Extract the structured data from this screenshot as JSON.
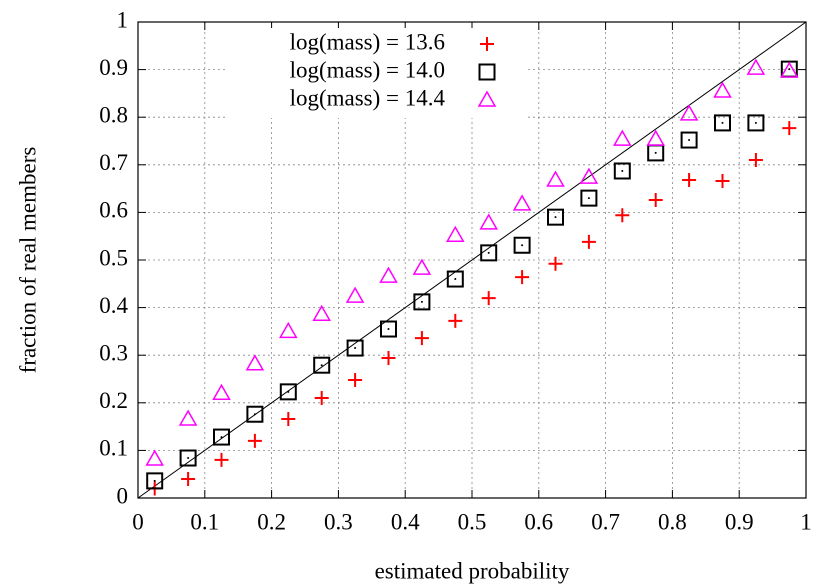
{
  "chart_data": {
    "type": "scatter",
    "xlabel": "estimated probability",
    "ylabel": "fraction of real members",
    "xlim": [
      0,
      1
    ],
    "ylim": [
      0,
      1
    ],
    "xticks": [
      0,
      0.1,
      0.2,
      0.3,
      0.4,
      0.5,
      0.6,
      0.7,
      0.8,
      0.9,
      1
    ],
    "yticks": [
      0,
      0.1,
      0.2,
      0.3,
      0.4,
      0.5,
      0.6,
      0.7,
      0.8,
      0.9,
      1
    ],
    "grid": true,
    "diagonal": true,
    "legend": "upper left",
    "x": [
      0.025,
      0.075,
      0.125,
      0.175,
      0.225,
      0.275,
      0.325,
      0.375,
      0.425,
      0.475,
      0.525,
      0.575,
      0.625,
      0.675,
      0.725,
      0.775,
      0.825,
      0.875,
      0.925,
      0.975
    ],
    "series": [
      {
        "name": "log(mass) = 13.6",
        "color": "#ff0000",
        "marker": "plus",
        "values": [
          0.02,
          0.04,
          0.08,
          0.12,
          0.166,
          0.21,
          0.248,
          0.294,
          0.336,
          0.372,
          0.42,
          0.464,
          0.492,
          0.538,
          0.594,
          0.626,
          0.668,
          0.666,
          0.71,
          0.777
        ]
      },
      {
        "name": "log(mass) = 14.0",
        "color": "#000000",
        "marker": "square",
        "values": [
          0.036,
          0.084,
          0.128,
          0.176,
          0.223,
          0.279,
          0.315,
          0.355,
          0.412,
          0.46,
          0.515,
          0.531,
          0.59,
          0.63,
          0.687,
          0.725,
          0.752,
          0.788,
          0.788,
          0.901
        ]
      },
      {
        "name": "log(mass) = 14.4",
        "color": "#ff00ff",
        "marker": "triangle",
        "values": [
          0.082,
          0.166,
          0.22,
          0.282,
          0.35,
          0.386,
          0.424,
          0.466,
          0.483,
          0.552,
          0.578,
          0.618,
          0.668,
          0.674,
          0.754,
          0.754,
          0.807,
          0.855,
          0.903,
          0.897
        ]
      }
    ]
  }
}
